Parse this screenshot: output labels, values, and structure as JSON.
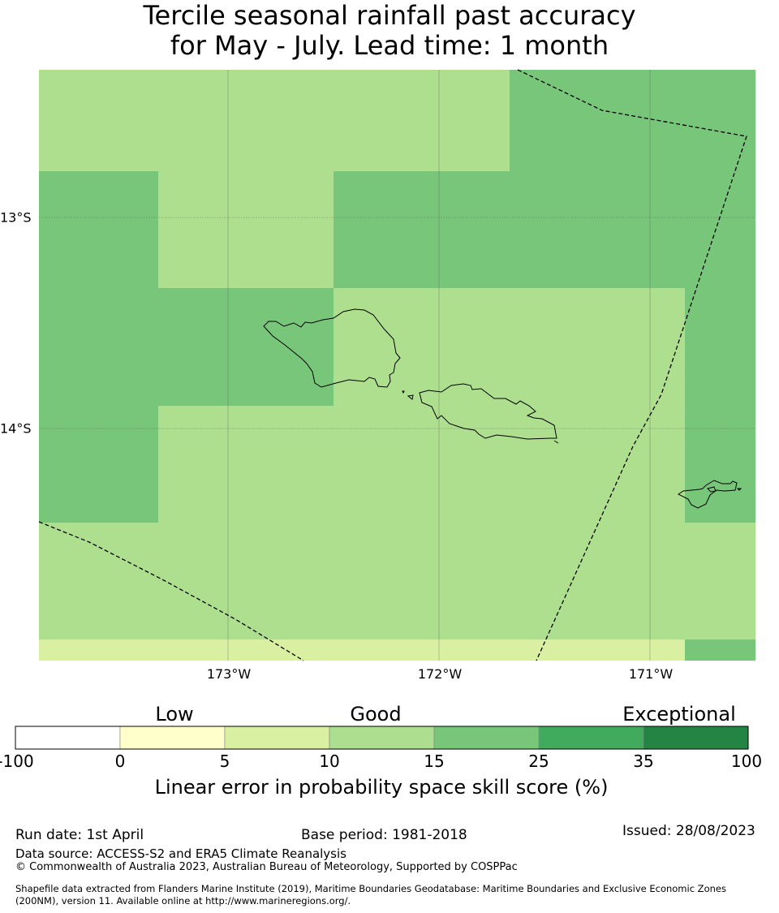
{
  "title_line1": "Tercile seasonal rainfall past accuracy",
  "title_line2": "for May - July. Lead time: 1 month",
  "map": {
    "lon_labels": [
      "173°W",
      "172°W",
      "171°W"
    ],
    "lat_labels": [
      "13°S",
      "14°S"
    ],
    "colors": {
      "c10_15": "#addf8e",
      "c15_25": "#78c679",
      "c5_10": "#d9f0a3"
    }
  },
  "colorbar": {
    "categories": [
      "Low",
      "Good",
      "Exceptional"
    ],
    "ticks": [
      "-100",
      "0",
      "5",
      "10",
      "15",
      "25",
      "35",
      "100"
    ],
    "colors": [
      "#ffffff",
      "#ffffcc",
      "#d9f0a3",
      "#addd8e",
      "#78c679",
      "#41ab5d",
      "#238443"
    ],
    "label": "Linear error in probability space skill score (%)"
  },
  "footer": {
    "run_date": "Run date: 1st April",
    "base_period": "Base period: 1981-2018",
    "issued": "Issued: 28/08/2023",
    "data_source": "Data source: ACCESS-S2 and ERA5 Climate Reanalysis",
    "copyright": "© Commonwealth of Australia 2023, Australian Bureau of Meteorology, Supported by COSPPac",
    "shapefile_1": "Shapefile data extracted from Flanders Marine Institute (2019), Maritime Boundaries Geodatabase: Maritime Boundaries and Exclusive Economic Zones",
    "shapefile_2": "(200NM), version 11. Available online at http://www.marineregions.org/."
  }
}
